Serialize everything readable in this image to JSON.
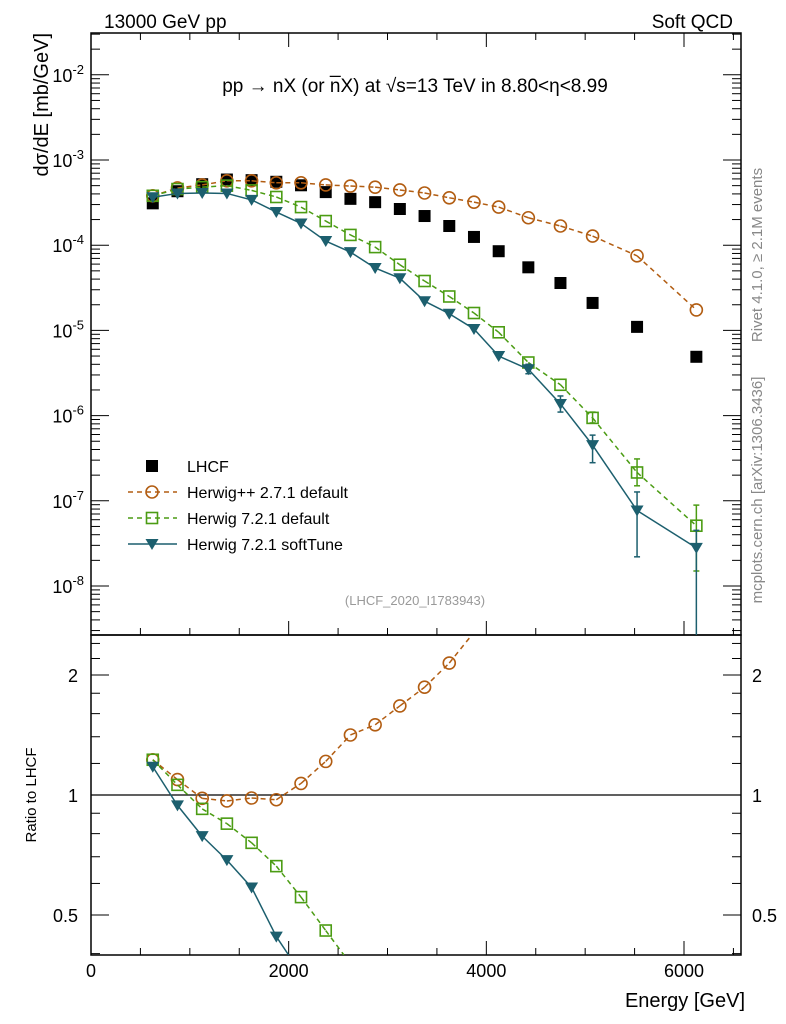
{
  "header": {
    "left": "13000 GeV pp",
    "right": "Soft QCD"
  },
  "side_text": {
    "top": "Rivet 4.1.0, ≥ 2.1M events",
    "bottom": "mcplots.cern.ch [arXiv:1306.3436]"
  },
  "analysis_id": "(LHCF_2020_I1783943)",
  "chart_data": {
    "type": "line",
    "title": "pp →  nX (or n̅X) at √s=13 TeV in 8.80<η<8.99",
    "xlabel": "Energy [GeV]",
    "ylabel": "dσ/dE [mb/GeV]",
    "ratio_ylabel": "Ratio to LHCF",
    "xlim": [
      0,
      6600
    ],
    "ylim": [
      3e-09,
      0.03
    ],
    "yscale": "log",
    "ratio_ylim": [
      0.4,
      2.5
    ],
    "xticks": [
      "0",
      "2000",
      "4000",
      "6000"
    ],
    "xtick_values": [
      0,
      2000,
      4000,
      6000
    ],
    "yticks": [
      {
        "base": "10",
        "exp": "-2"
      },
      {
        "base": "10",
        "exp": "-3"
      },
      {
        "base": "10",
        "exp": "-4"
      },
      {
        "base": "10",
        "exp": "-5"
      },
      {
        "base": "10",
        "exp": "-6"
      },
      {
        "base": "10",
        "exp": "-7"
      },
      {
        "base": "10",
        "exp": "-8"
      }
    ],
    "ratio_yticks": [
      "0.5",
      "1",
      "2"
    ],
    "ratio_ytick_values": [
      0.5,
      1,
      2
    ],
    "legend_position": "lower-left",
    "x": [
      625,
      875,
      1125,
      1375,
      1625,
      1875,
      2125,
      2375,
      2625,
      2875,
      3125,
      3375,
      3625,
      3875,
      4125,
      4425,
      4750,
      5075,
      5525,
      6125
    ],
    "series": [
      {
        "name": "LHCF",
        "color": "#000000",
        "marker": "square-filled",
        "line": "none",
        "values": [
          0.00031,
          0.00043,
          0.00052,
          0.00059,
          0.00058,
          0.000555,
          0.000505,
          0.00042,
          0.00035,
          0.00032,
          0.000266,
          0.00022,
          0.000168,
          0.000125,
          8.5e-05,
          5.5e-05,
          3.6e-05,
          2.1e-05,
          1.1e-05,
          4.9e-06
        ],
        "errors": []
      },
      {
        "name": "Herwig++ 2.7.1 default",
        "color": "#b25d12",
        "marker": "circle-open",
        "line": "dashed",
        "values": [
          0.00038,
          0.00047,
          0.00051,
          0.00057,
          0.00057,
          0.00054,
          0.00054,
          0.00051,
          0.000495,
          0.00048,
          0.000445,
          0.00041,
          0.00036,
          0.00032,
          0.00028,
          0.00021,
          0.000168,
          0.000128,
          7.5e-05,
          1.74e-05
        ],
        "errors": []
      },
      {
        "name": "Herwig 7.2.1 default",
        "color": "#4b9c13",
        "marker": "square-open",
        "line": "dashed",
        "values": [
          0.00038,
          0.000456,
          0.00048,
          0.0005,
          0.00044,
          0.000368,
          0.00028,
          0.000192,
          0.000132,
          9.5e-05,
          5.9e-05,
          3.8e-05,
          2.5e-05,
          1.6e-05,
          9.5e-06,
          4.2e-06,
          2.3e-06,
          9.4e-07,
          2.15e-07,
          5.1e-08
        ],
        "errors": [
          {
            "index": 17,
            "low": 8.2e-07,
            "high": 1.1e-06
          },
          {
            "index": 18,
            "low": 1.5e-07,
            "high": 3.1e-07
          },
          {
            "index": 19,
            "low": 1.5e-08,
            "high": 8.9e-08
          }
        ]
      },
      {
        "name": "Herwig 7.2.1 softTune",
        "color": "#1c5f6e",
        "marker": "triangle-down-filled",
        "line": "solid",
        "values": [
          0.000365,
          0.000405,
          0.00041,
          0.000405,
          0.00034,
          0.000245,
          0.00018,
          0.000112,
          8.3e-05,
          5.4e-05,
          4.1e-05,
          2.2e-05,
          1.57e-05,
          1.04e-05,
          5e-06,
          3.5e-06,
          1.37e-06,
          4.5e-07,
          7.7e-08,
          2.8e-08
        ],
        "errors": [
          {
            "index": 15,
            "low": 3.1e-06,
            "high": 4e-06
          },
          {
            "index": 16,
            "low": 1.1e-06,
            "high": 1.7e-06
          },
          {
            "index": 17,
            "low": 2.8e-07,
            "high": 5.9e-07
          },
          {
            "index": 18,
            "low": 2.2e-08,
            "high": 1.27e-07
          },
          {
            "index": 19,
            "low": 1e-09,
            "high": 4.5e-08
          }
        ]
      }
    ]
  }
}
